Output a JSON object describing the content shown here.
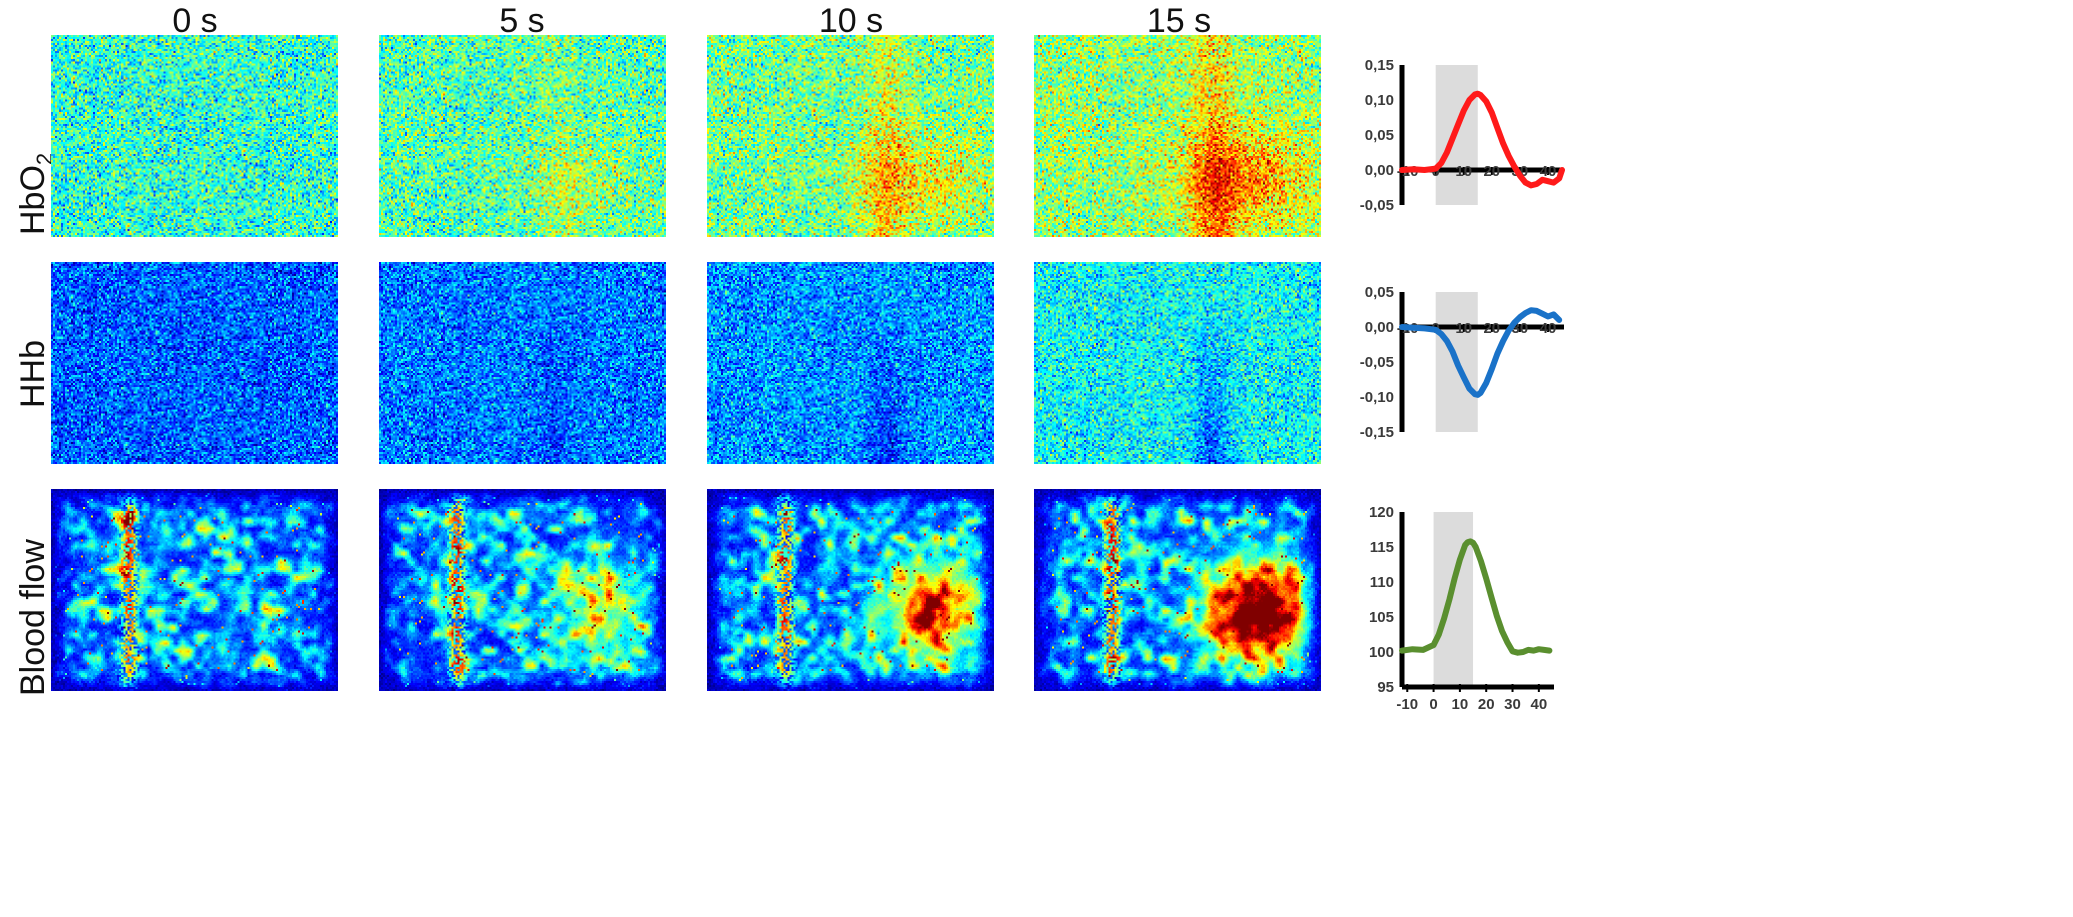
{
  "time_labels": [
    "0 s",
    "5 s",
    "10 s",
    "15 s"
  ],
  "rows": [
    {
      "label": "HbO",
      "label_sub": "2"
    },
    {
      "label": "HHb",
      "label_sub": ""
    },
    {
      "label": "Blood flow",
      "label_sub": ""
    }
  ],
  "chart_data": [
    {
      "type": "line",
      "series_color": "#ff1a1a",
      "x_ticks": [
        "-10",
        "0",
        "10",
        "20",
        "30",
        "40"
      ],
      "y_ticks": [
        "0,15",
        "0,10",
        "0,05",
        "0,00",
        "-0,05"
      ],
      "xlim": [
        -12,
        45
      ],
      "ylim": [
        -0.05,
        0.15
      ],
      "shaded_x": [
        0,
        15
      ],
      "x": [
        -12,
        -8,
        -4,
        0,
        2,
        4,
        6,
        8,
        10,
        12,
        14,
        15,
        16,
        18,
        20,
        22,
        24,
        26,
        28,
        30,
        32,
        34,
        36,
        38,
        40,
        42,
        44,
        45
      ],
      "y": [
        0.0,
        0.001,
        0.0,
        0.002,
        0.01,
        0.025,
        0.045,
        0.065,
        0.085,
        0.1,
        0.108,
        0.109,
        0.107,
        0.098,
        0.082,
        0.06,
        0.038,
        0.02,
        0.005,
        -0.008,
        -0.018,
        -0.022,
        -0.02,
        -0.014,
        -0.016,
        -0.018,
        -0.012,
        0.0
      ]
    },
    {
      "type": "line",
      "series_color": "#1a72c8",
      "x_ticks": [
        "-10",
        "0",
        "10",
        "20",
        "30",
        "40"
      ],
      "y_ticks": [
        "0,05",
        "0,00",
        "-0,05",
        "-0,10",
        "-0,15"
      ],
      "xlim": [
        -12,
        45
      ],
      "ylim": [
        -0.15,
        0.05
      ],
      "shaded_x": [
        0,
        15
      ],
      "x": [
        -12,
        -8,
        -4,
        0,
        2,
        4,
        6,
        8,
        10,
        12,
        14,
        15,
        16,
        18,
        20,
        22,
        24,
        26,
        28,
        30,
        32,
        34,
        36,
        38,
        40,
        42,
        44
      ],
      "y": [
        0.0,
        -0.001,
        -0.002,
        -0.004,
        -0.01,
        -0.02,
        -0.035,
        -0.055,
        -0.072,
        -0.088,
        -0.096,
        -0.097,
        -0.094,
        -0.08,
        -0.06,
        -0.038,
        -0.02,
        -0.005,
        0.006,
        0.014,
        0.02,
        0.024,
        0.023,
        0.019,
        0.015,
        0.018,
        0.01
      ]
    },
    {
      "type": "line",
      "series_color": "#5a8f2f",
      "x_ticks": [
        "-10",
        "0",
        "10",
        "20",
        "30",
        "40"
      ],
      "y_ticks": [
        "120",
        "115",
        "110",
        "105",
        "100",
        "95"
      ],
      "xlim": [
        -12,
        45
      ],
      "ylim": [
        95,
        120
      ],
      "shaded_x": [
        0,
        15
      ],
      "x": [
        -12,
        -8,
        -4,
        0,
        2,
        4,
        6,
        8,
        10,
        12,
        13,
        14,
        15,
        16,
        18,
        20,
        22,
        24,
        26,
        28,
        30,
        32,
        34,
        36,
        38,
        40,
        42,
        44
      ],
      "y": [
        100.2,
        100.4,
        100.3,
        101.0,
        102.5,
        104.8,
        107.5,
        110.5,
        113.2,
        115.3,
        115.7,
        115.8,
        115.6,
        115.0,
        113.0,
        110.5,
        107.8,
        105.2,
        103.0,
        101.4,
        100.1,
        99.9,
        100.0,
        100.3,
        100.2,
        100.4,
        100.3,
        100.2
      ]
    }
  ]
}
